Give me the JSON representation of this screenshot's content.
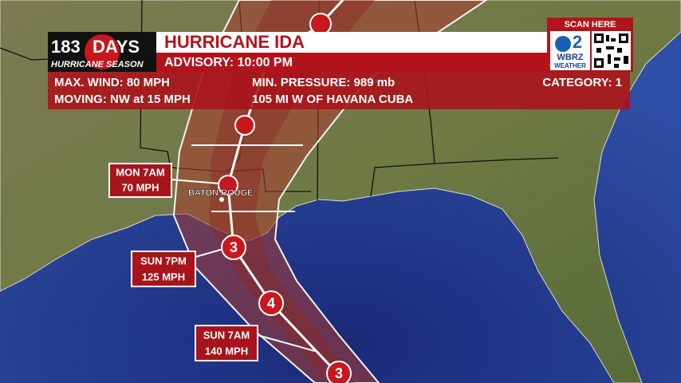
{
  "header": {
    "countdown_number": "183",
    "countdown_unit": "DAYS",
    "countdown_caption": "HURRICANE SEASON",
    "title": "HURRICANE IDA",
    "advisory": "ADVISORY: 10:00 PM"
  },
  "info": {
    "max_wind": "MAX. WIND: 80 MPH",
    "min_pressure": "MIN. PRESSURE:  989 mb",
    "category": "CATEGORY: 1",
    "moving": "MOVING: NW at 15 MPH",
    "location": "105 MI W OF HAVANA CUBA"
  },
  "logo": {
    "scan": "SCAN HERE",
    "channel": "2",
    "station": "WBRZ",
    "brand": "WEATHER"
  },
  "map": {
    "city": "BATON ROUGE",
    "track_labels": [
      {
        "time": "MON 7AM",
        "wind": "70 MPH"
      },
      {
        "time": "SUN 7PM",
        "wind": "125 MPH"
      },
      {
        "time": "SUN 7AM",
        "wind": "140 MPH"
      }
    ],
    "storm_markers": [
      "3",
      "4",
      "3"
    ]
  }
}
